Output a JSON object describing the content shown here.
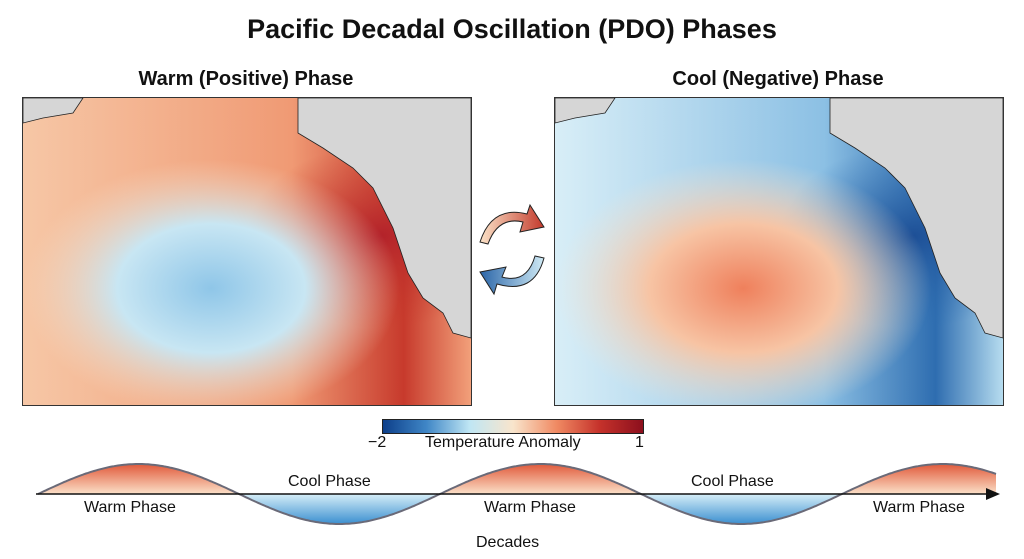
{
  "title": "Pacific Decadal Oscillation (PDO) Phases",
  "panels": [
    {
      "title": "Warm (Positive) Phase",
      "phase": "warm"
    },
    {
      "title": "Cool (Negative) Phase",
      "phase": "cool"
    }
  ],
  "cycle_arrows": {
    "icon": "cycle-arrows-icon",
    "colors": [
      "#c8402f",
      "#2f6fb0"
    ]
  },
  "colorbar": {
    "min_label": "−2",
    "max_label": "1",
    "label": "Temperature Anomaly",
    "colors": [
      "#0d3f8a",
      "#3f86c6",
      "#bfe6f4",
      "#f9e5cc",
      "#f08a63",
      "#c5322b",
      "#8c0f1d"
    ]
  },
  "timeline": {
    "phases": [
      "Warm Phase",
      "Cool Phase",
      "Warm Phase",
      "Cool Phase",
      "Warm Phase"
    ],
    "axis_label": "Decades",
    "warm_color": "#e0593a",
    "cool_color": "#3b8fd0"
  }
}
